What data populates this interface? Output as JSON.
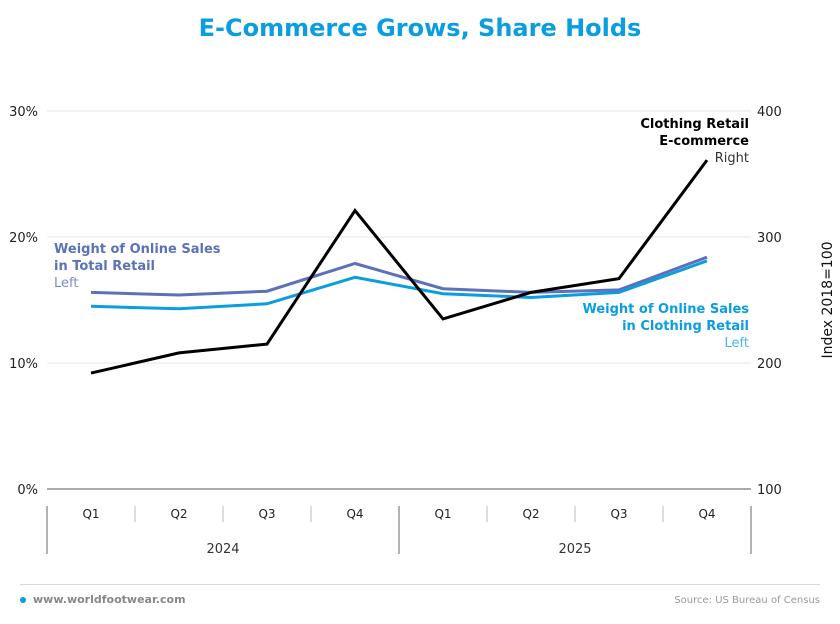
{
  "chart_data": {
    "type": "line",
    "title": "E-Commerce Grows, Share Holds",
    "categories": [
      "Q1",
      "Q2",
      "Q3",
      "Q4",
      "Q1",
      "Q2",
      "Q3",
      "Q4"
    ],
    "groups": [
      {
        "label": "2024",
        "count": 4
      },
      {
        "label": "2025",
        "count": 4
      }
    ],
    "left_axis": {
      "ticks": [
        "0%",
        "10%",
        "20%",
        "30%"
      ],
      "values": [
        0,
        10,
        20,
        30
      ],
      "ylim": [
        0,
        30
      ]
    },
    "right_axis": {
      "ticks": [
        "100",
        "200",
        "300",
        "400"
      ],
      "values": [
        100,
        200,
        300,
        400
      ],
      "ylim": [
        100,
        400
      ],
      "label": "Index  2018=100"
    },
    "grid": true,
    "series": [
      {
        "name": "Weight of Online Sales in Total Retail",
        "label_lines": [
          "Weight of Online Sales",
          "in Total Retail"
        ],
        "axis_label": "Left",
        "axis": "left",
        "color": "#5b72b8",
        "values": [
          15.6,
          15.4,
          15.7,
          17.9,
          15.9,
          15.6,
          15.8,
          18.4
        ]
      },
      {
        "name": "Weight of Online Sales in Clothing Retail",
        "label_lines": [
          "Weight of Online Sales",
          "in Clothing Retail"
        ],
        "axis_label": "Left",
        "axis": "left",
        "color": "#0a9ee0",
        "values": [
          14.5,
          14.3,
          14.7,
          16.8,
          15.5,
          15.2,
          15.6,
          18.1
        ]
      },
      {
        "name": "Clothing Retail E-commerce",
        "label_lines": [
          "Clothing Retail",
          "E-commerce"
        ],
        "axis_label": "Right",
        "axis": "right",
        "color": "#000000",
        "values": [
          192,
          208,
          215,
          321,
          235,
          256,
          267,
          361
        ]
      }
    ]
  },
  "footer": {
    "site": "www.worldfootwear.com",
    "source": "Source: US Bureau of Census"
  }
}
